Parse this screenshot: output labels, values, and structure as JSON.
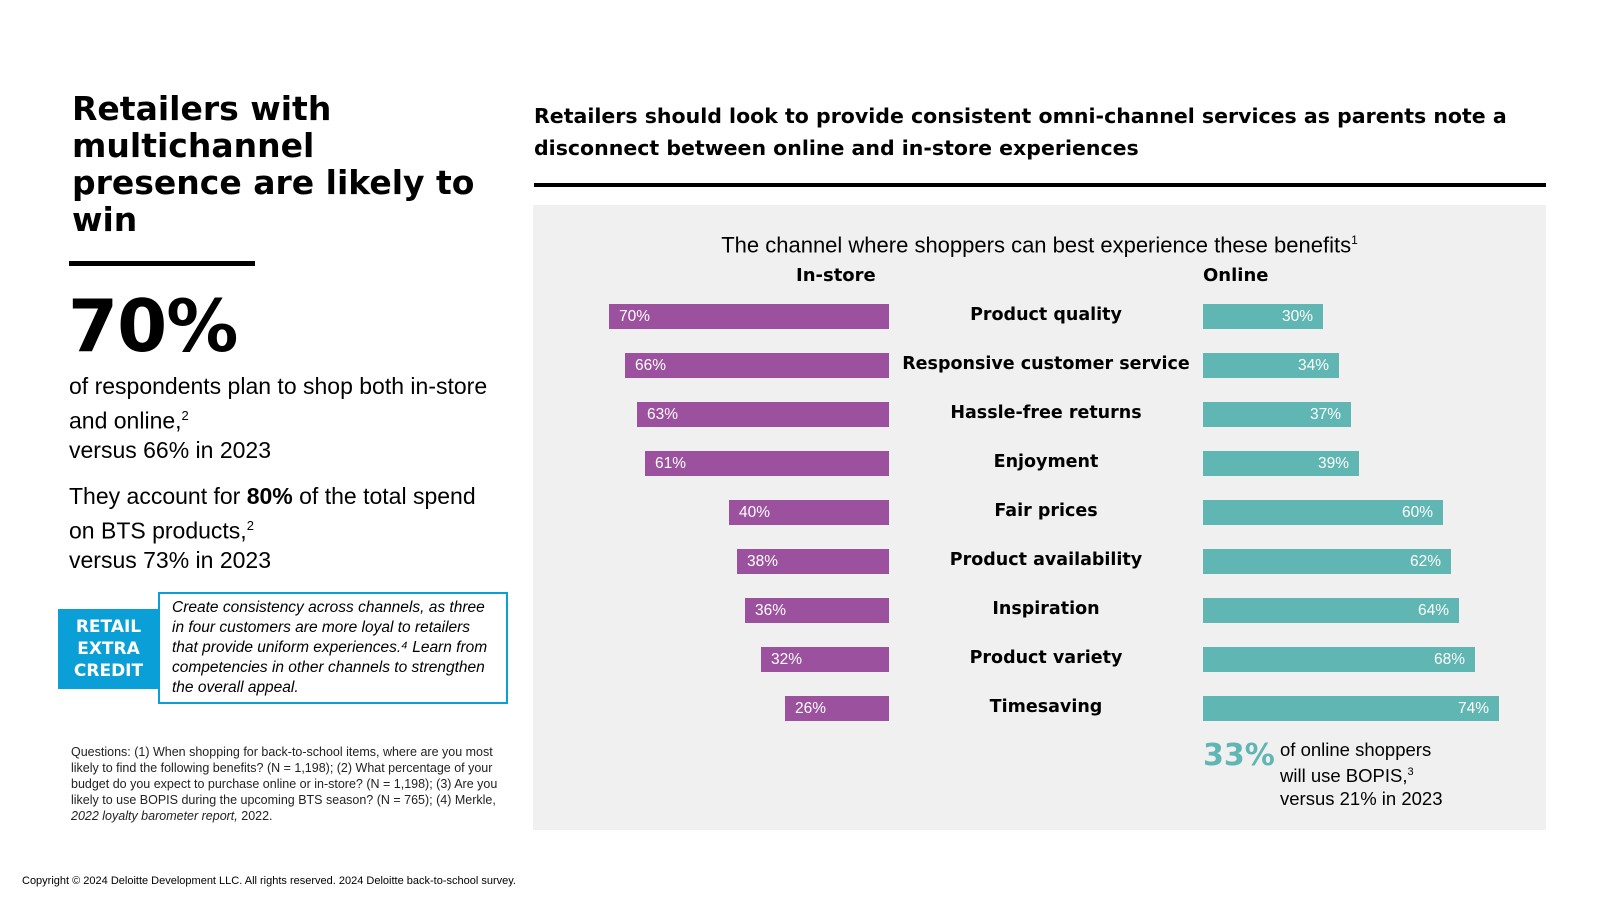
{
  "left": {
    "title": "Retailers with multichannel presence are likely to win",
    "big_stat": "70%",
    "stat_text_1": "of respondents plan to shop both in-store and online,",
    "stat_sup_1": "2",
    "stat_text_2": "versus 66% in 2023",
    "spend_prefix": "They account for ",
    "spend_value": "80%",
    "spend_suffix": " of the total spend on BTS products,",
    "spend_sup": "2",
    "spend_compare": "versus 73% in 2023",
    "credit_tag": [
      "RETAIL",
      "EXTRA",
      "CREDIT"
    ],
    "credit_text": "Create consistency across channels, as three in four customers are more loyal to retailers that provide uniform experiences.⁴ Learn from competencies in other channels to strengthen the overall appeal.",
    "footnote_main": "Questions: (1) When shopping for back-to-school items, where are you most likely to find the following benefits? (N = 1,198); (2) What percentage of your budget do you expect to purchase online or in-store? (N = 1,198); (3) Are you likely to use BOPIS during the upcoming BTS season? (N = 765); (4) Merkle, ",
    "footnote_italic": "2022 loyalty barometer report,",
    "footnote_end": " 2022."
  },
  "copyright": "Copyright © 2024 Deloitte Development LLC. All rights reserved. 2024 Deloitte back-to-school survey.",
  "right": {
    "heading": "Retailers should look to provide consistent omni-channel services as parents note a disconnect between online and in-store experiences",
    "bopis_stat": "33%",
    "bopis_line1": "of online shoppers",
    "bopis_line2": "will use BOPIS,",
    "bopis_sup": "3",
    "bopis_line3": "versus 21% in 2023"
  },
  "colors": {
    "instore": "#9b519e",
    "online": "#5fb6b3",
    "accent_blue": "#0b9fd8",
    "panel": "#f0f0f0"
  },
  "chart_data": {
    "type": "bar",
    "orientation": "horizontal-diverging",
    "title": "The channel where shoppers can best experience these benefits",
    "title_sup": "1",
    "categories": [
      "Product quality",
      "Responsive customer service",
      "Hassle-free returns",
      "Enjoyment",
      "Fair prices",
      "Product availability",
      "Inspiration",
      "Product variety",
      "Timesaving"
    ],
    "series": [
      {
        "name": "In-store",
        "values": [
          70,
          66,
          63,
          61,
          40,
          38,
          36,
          32,
          26
        ],
        "labels": [
          "70%",
          "66%",
          "63%",
          "61%",
          "40%",
          "38%",
          "36%",
          "32%",
          "26%"
        ]
      },
      {
        "name": "Online",
        "values": [
          30,
          34,
          37,
          39,
          60,
          62,
          64,
          68,
          74
        ],
        "labels": [
          "30%",
          "34%",
          "37%",
          "39%",
          "60%",
          "62%",
          "64%",
          "68%",
          "74%"
        ]
      }
    ],
    "unit": "%",
    "grid": false
  }
}
